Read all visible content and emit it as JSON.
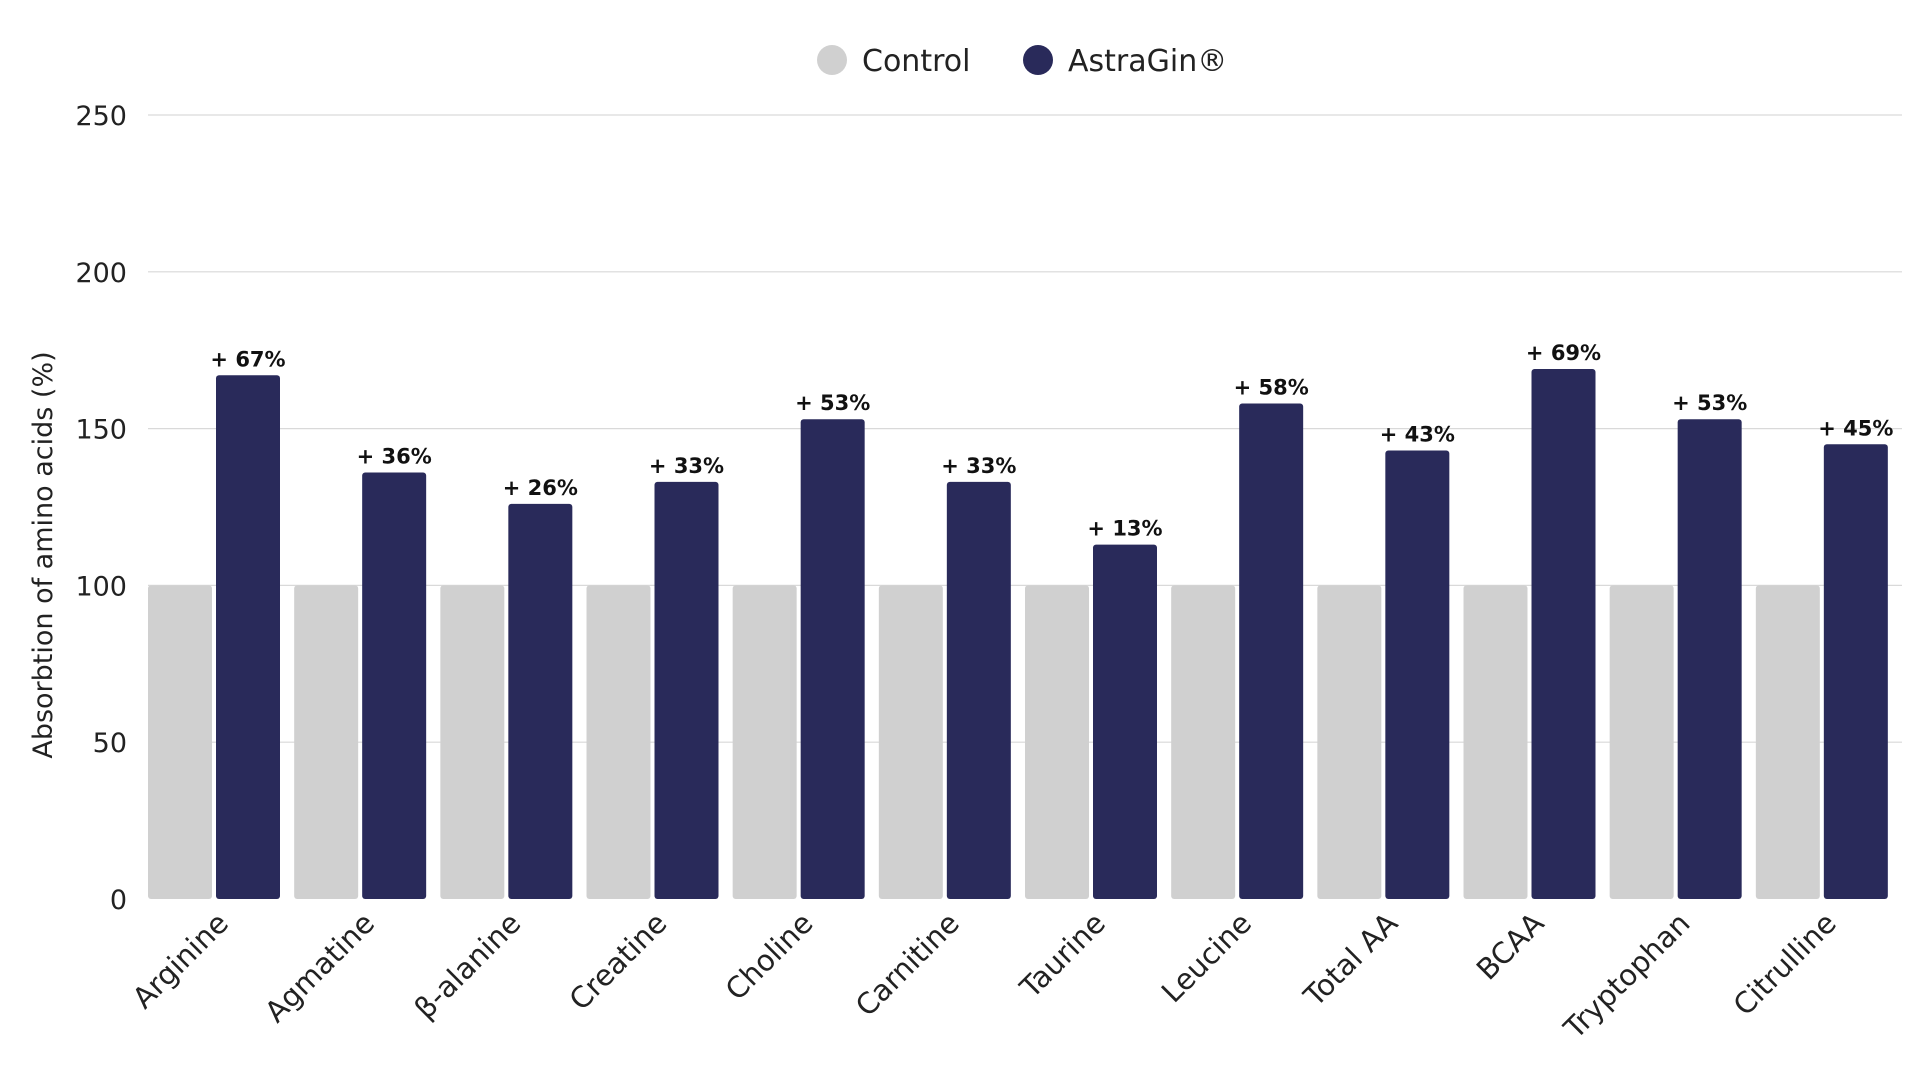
{
  "chart_data": {
    "type": "bar",
    "title": "",
    "xlabel": "",
    "ylabel": "Absorbtion of amino acids (%)",
    "ylim": [
      0,
      250
    ],
    "yticks": [
      0,
      50,
      100,
      150,
      200,
      250
    ],
    "grid": true,
    "legend_position": "top-center",
    "categories": [
      "Arginine",
      "Agmatine",
      "β-alanine",
      "Creatine",
      "Choline",
      "Carnitine",
      "Taurine",
      "Leucine",
      "Total AA",
      "BCAA",
      "Tryptophan",
      "Citrulline"
    ],
    "series": [
      {
        "name": "Control",
        "color": "#d0d0d0",
        "values": [
          100,
          100,
          100,
          100,
          100,
          100,
          100,
          100,
          100,
          100,
          100,
          100
        ]
      },
      {
        "name": "AstraGin®",
        "color": "#292a5a",
        "values": [
          167,
          136,
          126,
          133,
          153,
          133,
          113,
          158,
          143,
          169,
          153,
          145
        ],
        "data_labels": [
          "+ 67%",
          "+ 36%",
          "+ 26%",
          "+ 33%",
          "+ 53%",
          "+ 33%",
          "+ 13%",
          "+ 58%",
          "+ 43%",
          "+ 69%",
          "+ 53%",
          "+ 45%"
        ]
      }
    ]
  }
}
